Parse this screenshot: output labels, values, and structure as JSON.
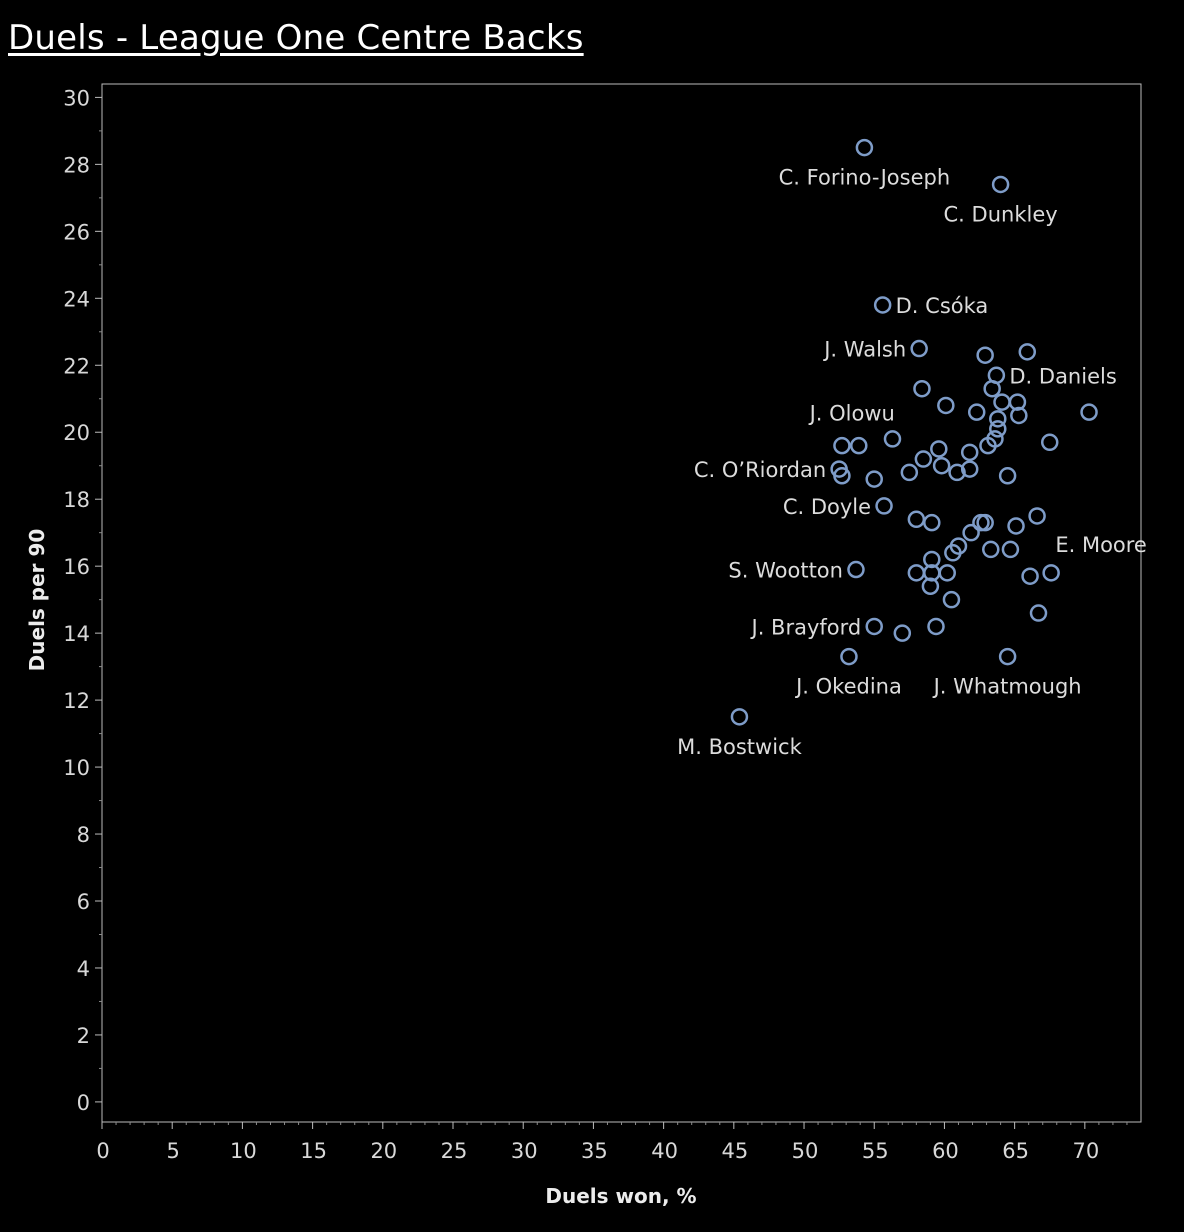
{
  "title": "Duels - League One Centre Backs",
  "chart_data": {
    "type": "scatter",
    "title": "Duels - League One Centre Backs",
    "xlabel": "Duels won, %",
    "ylabel": "Duels per 90",
    "xlim": [
      0,
      74
    ],
    "ylim": [
      -0.6,
      30.4
    ],
    "x_ticks": [
      0,
      5,
      10,
      15,
      20,
      25,
      30,
      35,
      40,
      45,
      50,
      55,
      60,
      65,
      70
    ],
    "y_ticks": [
      0,
      2,
      4,
      6,
      8,
      10,
      12,
      14,
      16,
      18,
      20,
      22,
      24,
      26,
      28,
      30
    ],
    "grid": false,
    "colors": {
      "background": "#000000",
      "point": "#7e9cc8",
      "axis": "#c8c8c8",
      "text": "#dcdcdc"
    },
    "points": [
      {
        "x": 54.3,
        "y": 28.5,
        "label": "C. Forino-Joseph",
        "pos": "below"
      },
      {
        "x": 64.0,
        "y": 27.4,
        "label": "C. Dunkley",
        "pos": "below"
      },
      {
        "x": 55.6,
        "y": 23.8,
        "label": "D. Csóka",
        "pos": "right"
      },
      {
        "x": 58.2,
        "y": 22.5,
        "label": "J. Walsh",
        "pos": "left"
      },
      {
        "x": 62.9,
        "y": 22.3
      },
      {
        "x": 65.9,
        "y": 22.4
      },
      {
        "x": 63.7,
        "y": 21.7,
        "label": "D. Daniels",
        "pos": "right"
      },
      {
        "x": 58.4,
        "y": 21.3
      },
      {
        "x": 63.4,
        "y": 21.3
      },
      {
        "x": 64.1,
        "y": 20.9
      },
      {
        "x": 65.2,
        "y": 20.9
      },
      {
        "x": 60.1,
        "y": 20.8,
        "label": "J. Olowu",
        "pos": "left-up"
      },
      {
        "x": 62.3,
        "y": 20.6
      },
      {
        "x": 65.3,
        "y": 20.5
      },
      {
        "x": 70.3,
        "y": 20.6
      },
      {
        "x": 63.8,
        "y": 20.4
      },
      {
        "x": 63.8,
        "y": 20.1
      },
      {
        "x": 63.6,
        "y": 19.8
      },
      {
        "x": 56.3,
        "y": 19.8
      },
      {
        "x": 52.7,
        "y": 19.6
      },
      {
        "x": 53.9,
        "y": 19.6
      },
      {
        "x": 59.6,
        "y": 19.5
      },
      {
        "x": 61.8,
        "y": 19.4
      },
      {
        "x": 63.1,
        "y": 19.6
      },
      {
        "x": 67.5,
        "y": 19.7
      },
      {
        "x": 58.5,
        "y": 19.2
      },
      {
        "x": 59.8,
        "y": 19.0
      },
      {
        "x": 52.5,
        "y": 18.9,
        "label": "C. O’Riordan",
        "pos": "left"
      },
      {
        "x": 52.7,
        "y": 18.7
      },
      {
        "x": 57.5,
        "y": 18.8
      },
      {
        "x": 60.9,
        "y": 18.8
      },
      {
        "x": 61.8,
        "y": 18.9
      },
      {
        "x": 55.0,
        "y": 18.6
      },
      {
        "x": 64.5,
        "y": 18.7
      },
      {
        "x": 55.7,
        "y": 17.8,
        "label": "C. Doyle",
        "pos": "left"
      },
      {
        "x": 58.0,
        "y": 17.4
      },
      {
        "x": 59.1,
        "y": 17.3
      },
      {
        "x": 62.6,
        "y": 17.3
      },
      {
        "x": 62.9,
        "y": 17.3
      },
      {
        "x": 61.9,
        "y": 17.0
      },
      {
        "x": 65.1,
        "y": 17.2
      },
      {
        "x": 66.6,
        "y": 17.5,
        "label": "E. Moore",
        "pos": "below-right"
      },
      {
        "x": 61.0,
        "y": 16.6
      },
      {
        "x": 60.6,
        "y": 16.4
      },
      {
        "x": 63.3,
        "y": 16.5
      },
      {
        "x": 64.7,
        "y": 16.5
      },
      {
        "x": 59.1,
        "y": 16.2
      },
      {
        "x": 53.7,
        "y": 15.9,
        "label": "S. Wootton",
        "pos": "left"
      },
      {
        "x": 58.0,
        "y": 15.8
      },
      {
        "x": 59.1,
        "y": 15.8
      },
      {
        "x": 60.2,
        "y": 15.8
      },
      {
        "x": 66.1,
        "y": 15.7
      },
      {
        "x": 67.6,
        "y": 15.8
      },
      {
        "x": 59.0,
        "y": 15.4
      },
      {
        "x": 60.5,
        "y": 15.0
      },
      {
        "x": 66.7,
        "y": 14.6
      },
      {
        "x": 55.0,
        "y": 14.2,
        "label": "J. Brayford",
        "pos": "left"
      },
      {
        "x": 59.4,
        "y": 14.2
      },
      {
        "x": 57.0,
        "y": 14.0
      },
      {
        "x": 53.2,
        "y": 13.3,
        "label": "J. Okedina",
        "pos": "below"
      },
      {
        "x": 64.5,
        "y": 13.3,
        "label": "J. Whatmough",
        "pos": "below"
      },
      {
        "x": 45.4,
        "y": 11.5,
        "label": "M. Bostwick",
        "pos": "below"
      }
    ]
  }
}
